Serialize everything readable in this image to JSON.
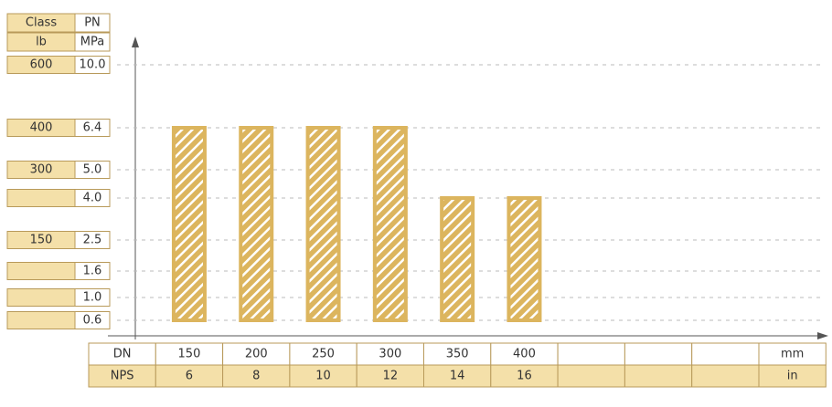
{
  "chart_data": {
    "type": "bar",
    "y_headers": [
      [
        "Class",
        "PN"
      ],
      [
        "lb",
        "MPa"
      ]
    ],
    "levels": [
      {
        "class": "600",
        "pn": {
          "value": 10,
          "label": "10.0"
        }
      },
      {
        "class": "400",
        "pn": 6.4
      },
      {
        "class": "300",
        "pn": {
          "value": 5,
          "label": "5.0"
        }
      },
      {
        "class": null,
        "pn": {
          "value": 4,
          "label": "4.0"
        }
      },
      {
        "class": "150",
        "pn": 2.5
      },
      {
        "class": null,
        "pn": 1.6
      },
      {
        "class": null,
        "pn": {
          "value": 1,
          "label": "1.0"
        }
      },
      {
        "class": null,
        "pn": 0.6
      }
    ],
    "x_headers": [
      "DN",
      "NPS"
    ],
    "x_units": [
      "mm",
      "in"
    ],
    "categories": [
      "150",
      "200",
      "250",
      "300",
      "350",
      "400"
    ],
    "nps": [
      "6",
      "8",
      "10",
      "12",
      "14",
      "16"
    ],
    "values": [
      6.4,
      6.4,
      6.4,
      6.4,
      4,
      4
    ],
    "base": 0.6,
    "color": "#dcb55e",
    "grid": true
  }
}
